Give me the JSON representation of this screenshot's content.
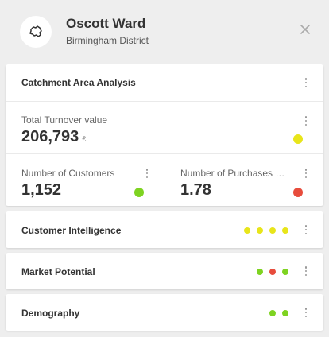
{
  "header": {
    "title": "Oscott Ward",
    "subtitle": "Birmingham District",
    "icon": "region-map-icon",
    "close_icon": "close-icon"
  },
  "catchment": {
    "title": "Catchment Area Analysis",
    "turnover": {
      "label": "Total Turnover value",
      "value": "206,793",
      "unit": "£",
      "status_color": "#e8e51a"
    },
    "customers": {
      "label": "Number of Customers",
      "value": "1,152",
      "status_color": "#7ed321"
    },
    "purchases": {
      "label": "Number of Purchases p...",
      "value": "1.78",
      "status_color": "#e74c3c"
    }
  },
  "sections": [
    {
      "title": "Customer Intelligence",
      "indicators": [
        "#e8e51a",
        "#e8e51a",
        "#e8e51a",
        "#e8e51a"
      ]
    },
    {
      "title": "Market Potential",
      "indicators": [
        "#7ed321",
        "#e74c3c",
        "#7ed321"
      ]
    },
    {
      "title": "Demography",
      "indicators": [
        "#7ed321",
        "#7ed321"
      ]
    }
  ],
  "colors": {
    "green": "#7ed321",
    "yellow": "#e8e51a",
    "red": "#e74c3c"
  }
}
